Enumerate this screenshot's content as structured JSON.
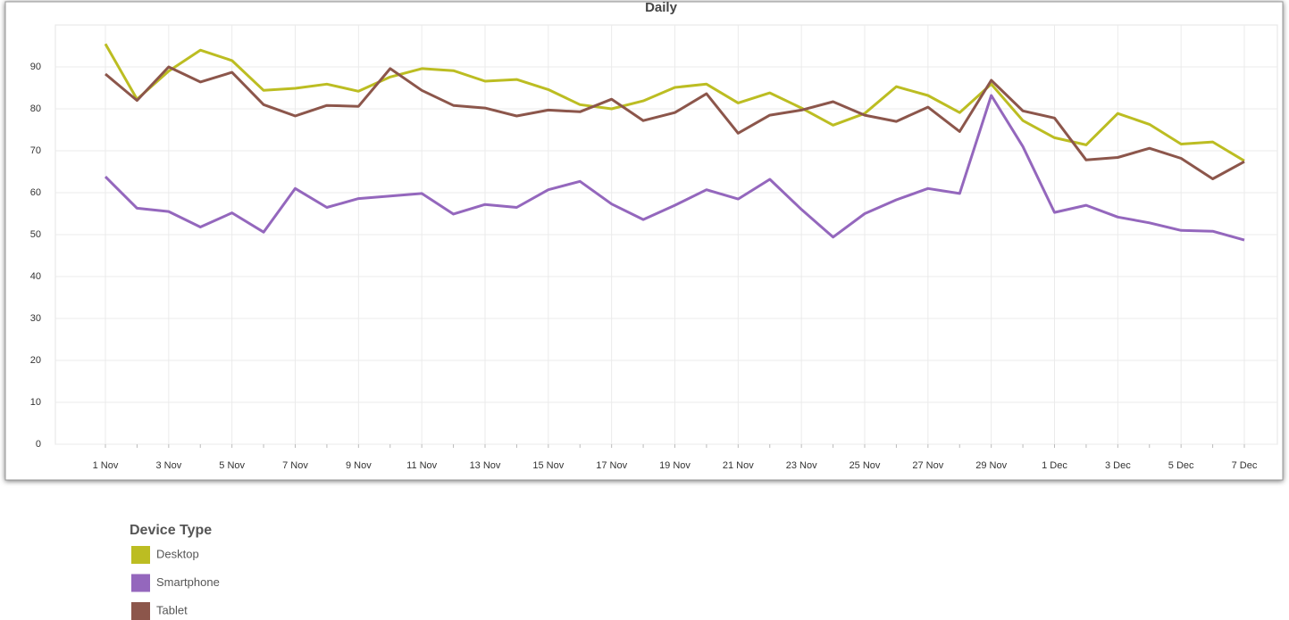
{
  "chart_data": {
    "type": "line",
    "title": "Daily",
    "categories": [
      "1 Nov",
      null,
      "3 Nov",
      null,
      "5 Nov",
      null,
      "7 Nov",
      null,
      "9 Nov",
      null,
      "11 Nov",
      null,
      "13 Nov",
      null,
      "15 Nov",
      null,
      "17 Nov",
      null,
      "19 Nov",
      null,
      "21 Nov",
      null,
      "23 Nov",
      null,
      "25 Nov",
      null,
      "27 Nov",
      null,
      "29 Nov",
      null,
      "1 Dec",
      null,
      "3 Dec",
      null,
      "5 Dec",
      null,
      "7 Dec"
    ],
    "series": [
      {
        "name": "Desktop",
        "color": "#bcbd22",
        "values": [
          95.5,
          82.3,
          89,
          94,
          91.5,
          84.4,
          84.9,
          85.9,
          84.2,
          87.6,
          89.6,
          89.1,
          86.6,
          87,
          84.6,
          81,
          80,
          81.9,
          85.1,
          85.9,
          81.4,
          83.8,
          80.2,
          76.1,
          78.9,
          85.3,
          83.2,
          79.1,
          85.9,
          77.2,
          73.1,
          71.4,
          78.9,
          76.3,
          71.6,
          72.1,
          67.6
        ]
      },
      {
        "name": "Smartphone",
        "color": "#9467bd",
        "values": [
          63.8,
          56.3,
          55.5,
          51.8,
          55.2,
          50.6,
          61,
          56.5,
          58.6,
          59.2,
          59.8,
          54.9,
          57.2,
          56.5,
          60.7,
          62.7,
          57.3,
          53.6,
          57,
          60.7,
          58.5,
          63.2,
          56,
          49.4,
          55,
          58.3,
          61,
          59.8,
          83.2,
          71,
          55.3,
          57,
          54.2,
          52.8,
          51,
          50.8,
          48.7
        ]
      },
      {
        "name": "Tablet",
        "color": "#8c564b",
        "values": [
          88.3,
          82,
          90,
          86.4,
          88.7,
          81,
          78.3,
          80.8,
          80.6,
          89.6,
          84.4,
          80.8,
          80.2,
          78.3,
          79.7,
          79.3,
          82.3,
          77.2,
          79.1,
          83.6,
          74.2,
          78.5,
          79.7,
          81.7,
          78.5,
          77,
          80.4,
          74.6,
          86.8,
          79.5,
          77.8,
          67.8,
          68.4,
          70.6,
          68.2,
          63.3,
          67.4
        ]
      }
    ],
    "ylim": [
      0,
      100
    ],
    "yticks": [
      0,
      10,
      20,
      30,
      40,
      50,
      60,
      70,
      80,
      90
    ],
    "grid": true,
    "legend": "bottom-left",
    "legend_title": "Device Type"
  }
}
